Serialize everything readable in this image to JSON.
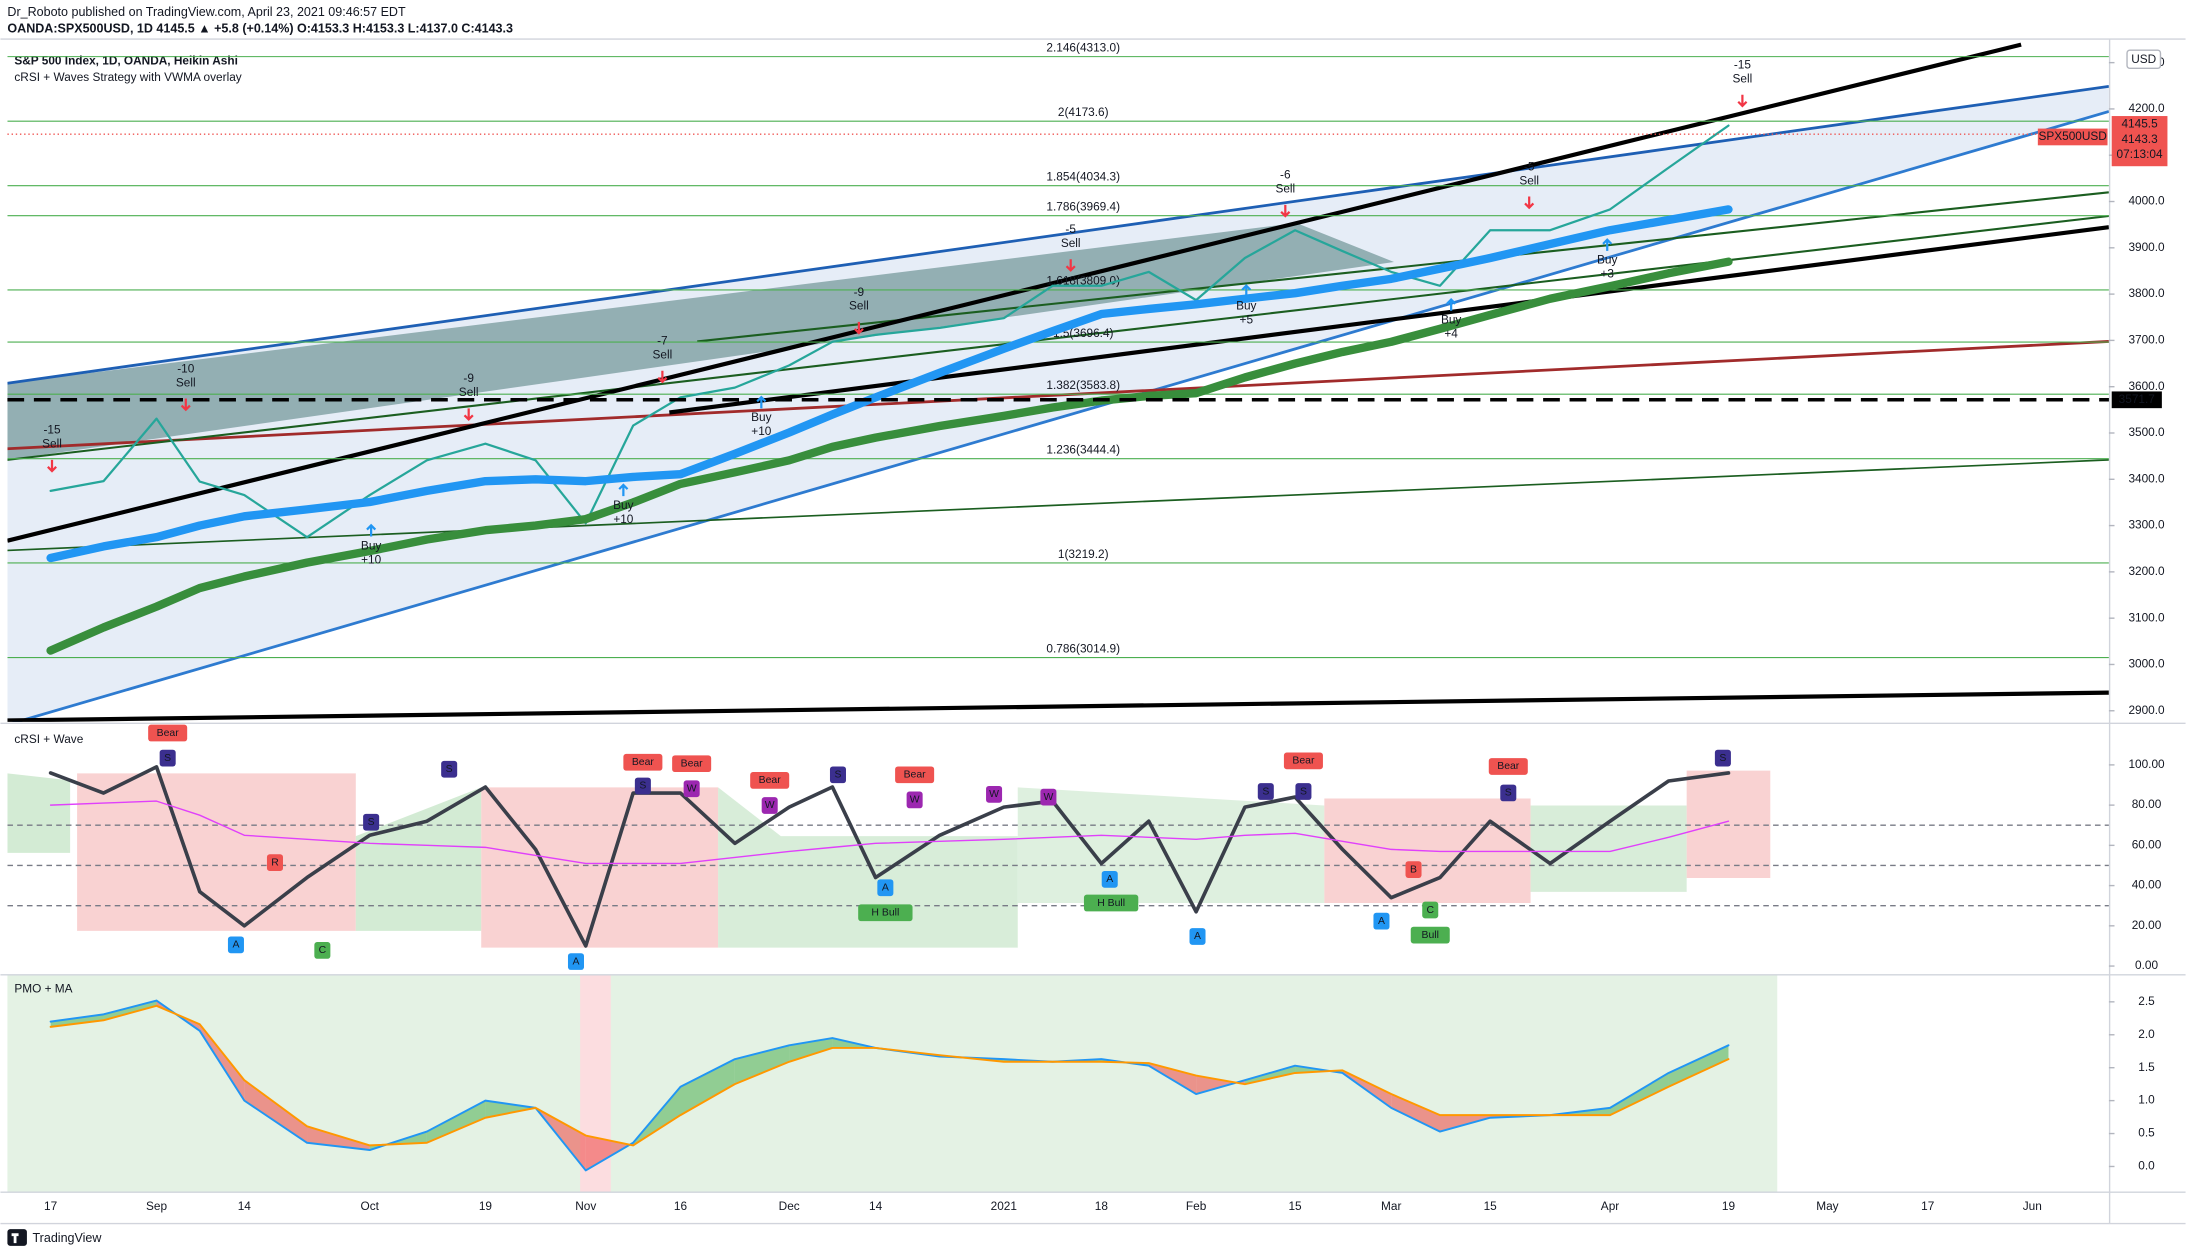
{
  "header": {
    "publisher": "Dr_Roboto published on TradingView.com, April 23, 2021 09:46:57 EDT",
    "symbol_line": "OANDA:SPX500USD, 1D  4145.5 ▲ +5.8 (+0.14%)  O:4153.3 H:4153.3 L:4137.0 C:4143.3",
    "brand": "TradingView"
  },
  "chart_data": [
    {
      "type": "line",
      "title": "S&P 500 Index, 1D, OANDA, Heikin Ashi",
      "subtitle": "cRSI + Waves Strategy with VWMA overlay",
      "categories": [
        "17",
        null,
        "Sep",
        null,
        "14",
        null,
        "Oct",
        null,
        "19",
        null,
        "Nov",
        null,
        "16",
        null,
        "Dec",
        null,
        "14",
        null,
        "2021",
        null,
        "18",
        null,
        "Feb",
        null,
        "15",
        null,
        "Mar",
        null,
        "15",
        null,
        "Apr",
        null,
        "19",
        null,
        "May",
        null,
        "17",
        null,
        "Jun"
      ],
      "series": [
        {
          "color": "#26a69a",
          "values": [
            3375,
            3396,
            3531,
            3395,
            3366,
            3275,
            3366,
            3441,
            3477,
            3441,
            3305,
            3516,
            3577,
            3598,
            3646,
            3697,
            3712,
            3727,
            3748,
            3818,
            3818,
            3848,
            3787,
            3878,
            3938,
            3893,
            3848,
            3818,
            3938,
            3938,
            3983,
            4073,
            4164,
            null,
            null,
            null,
            null,
            null,
            null
          ]
        },
        {
          "color": "#2196f3",
          "values": [
            3230,
            3255,
            3275,
            3300,
            3320,
            3335,
            3351,
            3375,
            3396,
            3400,
            3396,
            3405,
            3411,
            3455,
            3501,
            3540,
            3577,
            3630,
            3682,
            3720,
            3757,
            3768,
            3778,
            3790,
            3802,
            3818,
            3833,
            3855,
            3878,
            3908,
            3938,
            3960,
            3983,
            null,
            null,
            null,
            null,
            null,
            null
          ]
        },
        {
          "color": "#388e3c",
          "values": [
            3030,
            3080,
            3125,
            3165,
            3190,
            3220,
            3245,
            3270,
            3290,
            3300,
            3314,
            3350,
            3390,
            3415,
            3441,
            3470,
            3490,
            3515,
            3537,
            3555,
            3570,
            3580,
            3586,
            3620,
            3650,
            3675,
            3697,
            3725,
            3755,
            3790,
            3817,
            3845,
            3870,
            null,
            null,
            null,
            null,
            null,
            null
          ]
        }
      ],
      "ylim": [
        2876,
        4345
      ],
      "yticks": [
        {
          "value": 2900,
          "label": "2900.0"
        },
        {
          "value": 3000,
          "label": "3000.0"
        },
        {
          "value": 3100,
          "label": "3100.0"
        },
        {
          "value": 3200,
          "label": "3200.0"
        },
        {
          "value": 3300,
          "label": "3300.0"
        },
        {
          "value": 3400,
          "label": "3400.0"
        },
        {
          "value": 3500,
          "label": "3500.0"
        },
        {
          "value": 3600,
          "label": "3600.0"
        },
        {
          "value": 3700,
          "label": "3700.0"
        },
        {
          "value": 3800,
          "label": "3800.0"
        },
        {
          "value": 3900,
          "label": "3900.0"
        },
        {
          "value": 4000,
          "label": "4000.0"
        },
        {
          "value": 4100,
          "label": "4100.0"
        },
        {
          "value": 4200,
          "label": "4200.0"
        },
        {
          "value": 4300,
          "label": "4300.0"
        }
      ],
      "levels": [
        {
          "value": 4313.0,
          "label": "2.146(4313.0)"
        },
        {
          "value": 4173.6,
          "label": "2(4173.6)"
        },
        {
          "value": 4034.3,
          "label": "1.854(4034.3)"
        },
        {
          "value": 3969.4,
          "label": "1.786(3969.4)"
        },
        {
          "value": 3809.0,
          "label": "1.618(3809.0)"
        },
        {
          "value": 3696.4,
          "label": "1.5(3696.4)"
        },
        {
          "value": 3583.8,
          "label": "1.382(3583.8)"
        },
        {
          "value": 3444.4,
          "label": "1.236(3444.4)"
        },
        {
          "value": 3219.2,
          "label": "1(3219.2)"
        },
        {
          "value": 3014.9,
          "label": "0.786(3014.9)"
        }
      ],
      "reference_line": 3571.7,
      "last_price": 4145.5,
      "close": 4143.3,
      "countdown": "07:13:04",
      "symbol": "SPX500USD",
      "currency": "USD",
      "signals": [
        [
          "-15",
          "Sell"
        ],
        [
          "-10",
          "Sell"
        ],
        [
          "-9",
          "Sell"
        ],
        [
          "-7",
          "Sell"
        ],
        [
          "-9",
          "Sell"
        ],
        [
          "-5",
          "Sell"
        ],
        [
          "-6",
          "Sell"
        ],
        [
          "-5",
          "Sell"
        ],
        [
          "-15",
          "Sell"
        ],
        [
          "Buy",
          "+10"
        ],
        [
          "Buy",
          "+10"
        ],
        [
          "Buy",
          "+10"
        ],
        [
          "Buy",
          "+5"
        ],
        [
          "Buy",
          "+4"
        ],
        [
          "Buy",
          "+3"
        ]
      ]
    },
    {
      "type": "line",
      "title": "cRSI + Wave",
      "series": [
        {
          "color": "#3a3f4a",
          "values": [
            96,
            86,
            99,
            37,
            20,
            44,
            65,
            72,
            89,
            58,
            10,
            86,
            86,
            61,
            79,
            89,
            44,
            65,
            79,
            82,
            51,
            72,
            27,
            79,
            84,
            58,
            34,
            44,
            72,
            51,
            72,
            92,
            96,
            null,
            null,
            null,
            null,
            null,
            null
          ]
        },
        {
          "color": "#e040fb",
          "values": [
            80,
            81,
            82,
            75,
            65,
            63,
            61,
            60,
            59,
            55,
            51,
            51,
            51,
            54,
            57,
            59,
            61,
            62,
            63,
            64,
            65,
            64,
            63,
            65,
            66,
            62,
            58,
            57,
            57,
            57,
            57,
            64,
            72,
            null,
            null,
            null,
            null,
            null,
            null
          ]
        }
      ],
      "ylim": [
        -4,
        120
      ],
      "yticks": [
        {
          "value": 0,
          "label": "0.00"
        },
        {
          "value": 20,
          "label": "20.00"
        },
        {
          "value": 40,
          "label": "40.00"
        },
        {
          "value": 60,
          "label": "60.00"
        },
        {
          "value": 80,
          "label": "80.00"
        },
        {
          "value": 100,
          "label": "100.00"
        }
      ],
      "bands": [
        30,
        50,
        70
      ],
      "markers": [
        "Bear",
        "S",
        "S",
        "S",
        "Bear",
        "S",
        "Bear",
        "W",
        "Bear",
        "W",
        "S",
        "Bear",
        "W",
        "W",
        "W",
        "S",
        "Bear",
        "S",
        "Bear",
        "S",
        "S",
        "A",
        "A",
        "A",
        "H Bull",
        "A",
        "H Bull",
        "A",
        "A",
        "R",
        "B",
        "C",
        "C",
        "Bull"
      ]
    },
    {
      "type": "line",
      "title": "PMO + MA",
      "series": [
        {
          "color": "#2196f3",
          "values": [
            2.2,
            2.31,
            2.52,
            2.06,
            1.0,
            0.36,
            0.25,
            0.53,
            1.0,
            0.89,
            -0.06,
            0.36,
            1.21,
            1.63,
            1.84,
            1.95,
            1.8,
            1.67,
            1.63,
            1.59,
            1.63,
            1.53,
            1.1,
            1.31,
            1.53,
            1.42,
            0.89,
            0.53,
            0.74,
            0.78,
            0.89,
            1.42,
            1.84,
            null,
            null,
            null,
            null,
            null,
            null
          ]
        },
        {
          "color": "#ff9800",
          "values": [
            2.12,
            2.22,
            2.44,
            2.16,
            1.31,
            0.61,
            0.32,
            0.36,
            0.74,
            0.89,
            0.47,
            0.32,
            0.78,
            1.25,
            1.59,
            1.8,
            1.8,
            1.69,
            1.59,
            1.59,
            1.59,
            1.57,
            1.38,
            1.25,
            1.42,
            1.46,
            1.1,
            0.78,
            0.78,
            0.78,
            0.78,
            1.21,
            1.63,
            null,
            null,
            null,
            null,
            null,
            null
          ]
        }
      ],
      "ylim": [
        -0.38,
        2.9
      ],
      "yticks": [
        {
          "value": 0,
          "label": "0.0"
        },
        0.5,
        {
          "value": 1,
          "label": "1.0"
        },
        1.5,
        {
          "value": 2,
          "label": "2.0"
        },
        2.5
      ]
    }
  ]
}
